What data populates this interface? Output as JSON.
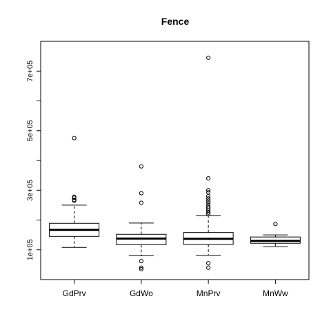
{
  "chart_data": {
    "type": "boxplot",
    "title": "Fence",
    "xlabel": "",
    "ylabel": "",
    "ylim": [
      0,
      800000
    ],
    "yticks": [
      100000,
      200000,
      300000,
      400000,
      500000,
      600000,
      700000
    ],
    "ytick_labels": [
      "1e+05",
      "",
      "3e+05",
      "",
      "5e+05",
      "",
      "7e+05"
    ],
    "categories": [
      "GdPrv",
      "GdWo",
      "MnPrv",
      "MnWw"
    ],
    "boxes": [
      {
        "name": "GdPrv",
        "whisker_low": 108000,
        "q1": 145000,
        "median": 167000,
        "q3": 189000,
        "whisker_high": 250000,
        "outliers": [
          265000,
          268000,
          275000,
          278000,
          475000
        ]
      },
      {
        "name": "GdWo",
        "whisker_low": 80000,
        "q1": 117000,
        "median": 138000,
        "q3": 152000,
        "whisker_high": 190000,
        "outliers": [
          35000,
          40000,
          62000,
          258000,
          290000,
          380000
        ]
      },
      {
        "name": "MnPrv",
        "whisker_low": 82000,
        "q1": 118000,
        "median": 137000,
        "q3": 158000,
        "whisker_high": 215000,
        "outliers": [
          40000,
          55000,
          220000,
          225000,
          232000,
          238000,
          243000,
          250000,
          258000,
          265000,
          272000,
          280000,
          293000,
          300000,
          340000,
          745000
        ]
      },
      {
        "name": "MnWw",
        "whisker_low": 110000,
        "q1": 122000,
        "median": 130000,
        "q3": 143000,
        "whisker_high": 150000,
        "outliers": [
          187000
        ]
      }
    ],
    "grid": false,
    "legend": "none"
  }
}
